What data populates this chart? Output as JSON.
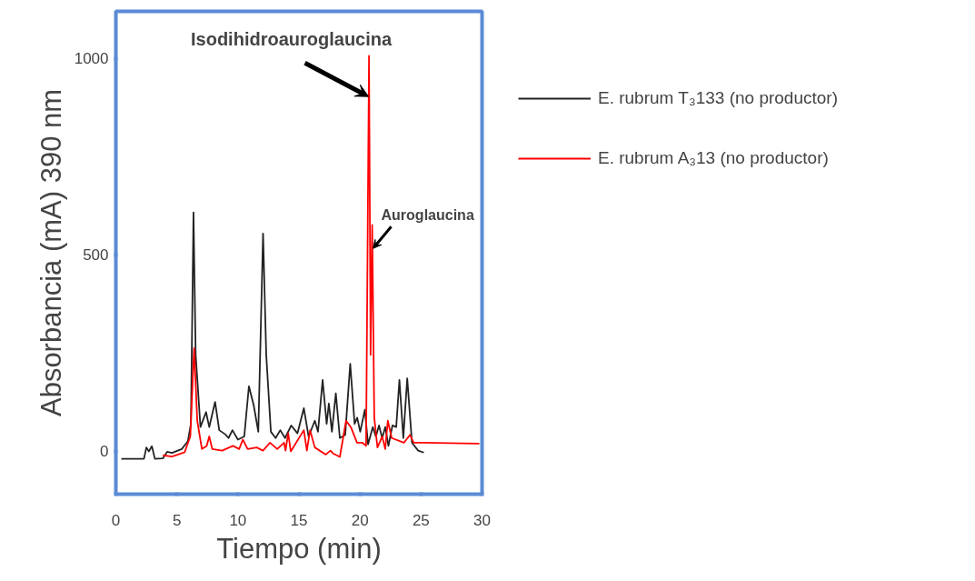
{
  "chart_data": {
    "type": "line",
    "xlabel": "Tiempo (min)",
    "ylabel": "Absorbancia (mA) 390 nm",
    "xlim": [
      0,
      30
    ],
    "xticks": [
      0,
      5,
      10,
      15,
      20,
      25,
      30
    ],
    "ylim": [
      -110,
      1120
    ],
    "yticks": [
      0,
      500,
      1000
    ],
    "grid": false,
    "legend": "top right",
    "marker": "none",
    "line_style": "solid",
    "series": [
      {
        "name": "E. rubrum T₃133 (no productor)",
        "color": "#222222",
        "x": [
          0.45,
          2.3,
          2.5,
          2.7,
          2.95,
          3.2,
          3.85,
          4.2,
          4.6,
          5.4,
          5.9,
          6.15,
          6.36,
          6.54,
          6.93,
          7.39,
          7.65,
          8.13,
          8.47,
          8.98,
          9.23,
          9.55,
          10.0,
          10.52,
          10.9,
          11.29,
          11.67,
          12.06,
          12.32,
          12.7,
          13.09,
          13.47,
          13.86,
          14.37,
          14.88,
          15.4,
          15.79,
          16.3,
          16.56,
          16.94,
          17.27,
          17.45,
          17.7,
          18.02,
          18.35,
          18.79,
          19.2,
          19.56,
          19.77,
          20.02,
          20.4,
          20.66,
          21.05,
          21.3,
          21.56,
          21.82,
          22.07,
          22.33,
          22.66,
          22.97,
          23.23,
          23.55,
          23.87,
          24.26,
          24.77,
          25.23
        ],
        "values": [
          -20,
          -20,
          9,
          -1,
          12,
          -20,
          -19,
          -2,
          -5,
          5,
          25,
          69,
          608,
          245,
          61,
          99,
          61,
          125,
          53,
          42,
          33,
          53,
          29,
          37,
          165,
          117,
          49,
          554,
          245,
          49,
          33,
          53,
          33,
          65,
          45,
          109,
          37,
          77,
          49,
          181,
          69,
          121,
          49,
          147,
          33,
          41,
          222,
          69,
          85,
          49,
          105,
          17,
          61,
          37,
          65,
          33,
          61,
          13,
          65,
          61,
          181,
          33,
          185,
          21,
          1,
          -4
        ]
      },
      {
        "name": "E. rubrum A₃13 (no productor)",
        "color": "#ff0000",
        "x": [
          3.85,
          4.6,
          5.64,
          6.1,
          6.41,
          6.67,
          7.05,
          7.44,
          7.65,
          7.9,
          8.71,
          9.6,
          10.1,
          10.4,
          10.8,
          11.54,
          12.05,
          12.63,
          13.22,
          13.78,
          13.9,
          14.12,
          14.33,
          15.4,
          15.65,
          15.91,
          16.3,
          17.2,
          17.58,
          17.83,
          18.35,
          18.86,
          19.25,
          19.76,
          20.2,
          20.5,
          20.74,
          20.87,
          21.0,
          21.17,
          21.43,
          21.82,
          22.07,
          22.28,
          22.6,
          23.6,
          24.1,
          24.4,
          25.2,
          29.78
        ],
        "values": [
          -11,
          -14,
          -3,
          37,
          262,
          77,
          5,
          13,
          37,
          5,
          1,
          13,
          5,
          29,
          5,
          9,
          1,
          21,
          5,
          21,
          1,
          45,
          -1,
          53,
          1,
          53,
          9,
          -9,
          1,
          -7,
          -15,
          77,
          61,
          21,
          21,
          13,
          1007,
          245,
          576,
          85,
          9,
          37,
          5,
          77,
          33,
          21,
          41,
          21,
          21,
          19
        ]
      }
    ],
    "annotations": [
      {
        "text": "Isodihidroauroglaucina",
        "x": 20.7,
        "y": 903
      },
      {
        "text": "Auroglaucina",
        "x": 21.07,
        "y": 516
      }
    ]
  }
}
